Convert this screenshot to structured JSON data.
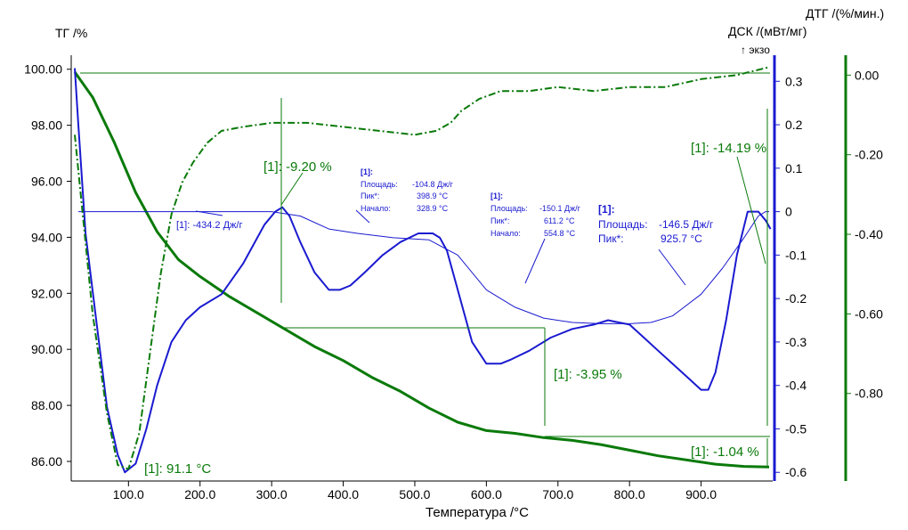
{
  "chart_data": {
    "type": "line",
    "xlabel": "Температура /°C",
    "x_ticks": [
      "100.0",
      "200.0",
      "300.0",
      "400.0",
      "500.0",
      "600.0",
      "700.0",
      "800.0",
      "900.0"
    ],
    "xlim": [
      20,
      1000
    ],
    "axes": {
      "tg": {
        "label": "ТГ /%",
        "ylim": [
          85.3,
          100.5
        ],
        "ticks": [
          "100.00",
          "98.00",
          "96.00",
          "94.00",
          "92.00",
          "90.00",
          "88.00",
          "86.00"
        ],
        "tick_values": [
          100,
          98,
          96,
          94,
          92,
          90,
          88,
          86
        ]
      },
      "dsc": {
        "label": "ДСК /(мВт/мг)",
        "exo_label": "↑ экзо",
        "ylim": [
          -0.62,
          0.36
        ],
        "ticks": [
          "0.3",
          "0.2",
          "0.1",
          "0",
          "-0.1",
          "-0.2",
          "-0.3",
          "-0.4",
          "-0.5",
          "-0.6"
        ],
        "tick_values": [
          0.3,
          0.2,
          0.1,
          0,
          -0.1,
          -0.2,
          -0.3,
          -0.4,
          -0.5,
          -0.6
        ]
      },
      "dtg": {
        "label": "ДТГ /(%/мин.)",
        "ylim": [
          -1.02,
          0.05
        ],
        "ticks": [
          "0.00",
          "-0.20",
          "-0.40",
          "-0.60",
          "-0.80"
        ],
        "tick_values": [
          0,
          -0.2,
          -0.4,
          -0.6,
          -0.8
        ]
      }
    },
    "colors": {
      "tg": "#0a7a0a",
      "dsc": "#1a1ad0",
      "dtg": "#0a7a0a",
      "dsc_baseline": "#1a1ad0"
    },
    "series": [
      {
        "axis": "tg",
        "x": [
          25,
          50,
          80,
          110,
          140,
          170,
          200,
          240,
          280,
          320,
          360,
          400,
          440,
          480,
          520,
          560,
          600,
          640,
          680,
          720,
          760,
          800,
          840,
          880,
          920,
          960,
          995
        ],
        "y": [
          99.9,
          99.0,
          97.4,
          95.6,
          94.2,
          93.2,
          92.6,
          91.9,
          91.3,
          90.7,
          90.1,
          89.6,
          89.0,
          88.5,
          87.9,
          87.4,
          87.1,
          87.0,
          86.85,
          86.75,
          86.6,
          86.4,
          86.2,
          86.05,
          85.9,
          85.82,
          85.8
        ]
      },
      {
        "axis": "dsc",
        "x": [
          25,
          30,
          40,
          55,
          70,
          85,
          95,
          110,
          125,
          140,
          160,
          180,
          200,
          230,
          260,
          290,
          305,
          315,
          325,
          340,
          360,
          380,
          395,
          410,
          430,
          455,
          480,
          505,
          525,
          535,
          545,
          560,
          580,
          600,
          620,
          635,
          660,
          690,
          720,
          750,
          770,
          785,
          800,
          820,
          840,
          860,
          880,
          900,
          910,
          920,
          935,
          950,
          965,
          980,
          990,
          997
        ],
        "y": [
          0.33,
          0.2,
          -0.05,
          -0.25,
          -0.45,
          -0.56,
          -0.6,
          -0.58,
          -0.5,
          -0.4,
          -0.3,
          -0.25,
          -0.22,
          -0.19,
          -0.12,
          -0.03,
          0.0,
          0.01,
          -0.01,
          -0.07,
          -0.14,
          -0.18,
          -0.18,
          -0.17,
          -0.14,
          -0.1,
          -0.07,
          -0.05,
          -0.05,
          -0.06,
          -0.09,
          -0.18,
          -0.3,
          -0.35,
          -0.35,
          -0.34,
          -0.32,
          -0.29,
          -0.27,
          -0.26,
          -0.25,
          -0.255,
          -0.26,
          -0.29,
          -0.32,
          -0.35,
          -0.38,
          -0.41,
          -0.41,
          -0.37,
          -0.25,
          -0.1,
          0.0,
          0.0,
          -0.02,
          -0.04
        ]
      },
      {
        "axis": "dsc",
        "x": [
          30,
          100,
          200,
          300,
          340,
          380,
          420,
          470,
          520,
          560,
          600,
          640,
          680,
          720,
          760,
          800,
          830,
          860,
          900,
          930,
          960,
          980,
          990,
          995
        ],
        "y": [
          0.0,
          0.0,
          0.0,
          0.0,
          -0.01,
          -0.04,
          -0.05,
          -0.06,
          -0.065,
          -0.1,
          -0.18,
          -0.22,
          -0.245,
          -0.255,
          -0.258,
          -0.258,
          -0.255,
          -0.24,
          -0.19,
          -0.13,
          -0.06,
          -0.01,
          0.0,
          0.0
        ]
      },
      {
        "axis": "dtg",
        "x": [
          25,
          50,
          70,
          85,
          100,
          115,
          130,
          145,
          160,
          175,
          190,
          210,
          230,
          260,
          300,
          350,
          400,
          450,
          500,
          530,
          550,
          565,
          590,
          620,
          660,
          700,
          750,
          800,
          850,
          900,
          950,
          995
        ],
        "y": [
          -0.15,
          -0.6,
          -0.85,
          -0.98,
          -0.99,
          -0.9,
          -0.7,
          -0.5,
          -0.35,
          -0.27,
          -0.22,
          -0.17,
          -0.14,
          -0.13,
          -0.12,
          -0.12,
          -0.13,
          -0.14,
          -0.15,
          -0.14,
          -0.12,
          -0.09,
          -0.06,
          -0.04,
          -0.04,
          -0.03,
          -0.04,
          -0.03,
          -0.03,
          -0.01,
          0.0,
          0.02
        ]
      }
    ],
    "annotations": {
      "tg1": "[1]: -9.20 %",
      "tg2": "[1]: -3.95 %",
      "tg3": "[1]: -14.19 %",
      "tg4": "[1]: -1.04 %",
      "peak_temp": "[1]: 91.1 °C",
      "dsc_area1": "[1]: -434.2 Дж/г",
      "p2": {
        "head": "[1]:",
        "rows": [
          [
            "Площадь:",
            "-104.8 Дж/г"
          ],
          [
            "Пик*:",
            "398.9 °C"
          ],
          [
            "Начало:",
            "328.9 °C"
          ]
        ]
      },
      "p3": {
        "head": "[1]:",
        "rows": [
          [
            "Площадь:",
            "-150.1 Дж/г"
          ],
          [
            "Пик*:",
            "611.2 °C"
          ],
          [
            "Начало:",
            "554.8 °C"
          ]
        ]
      },
      "p4": {
        "head": "[1]:",
        "rows": [
          [
            "Площадь:",
            "-146.5 Дж/г"
          ],
          [
            "Пик*:",
            "925.7 °C"
          ]
        ]
      }
    }
  }
}
